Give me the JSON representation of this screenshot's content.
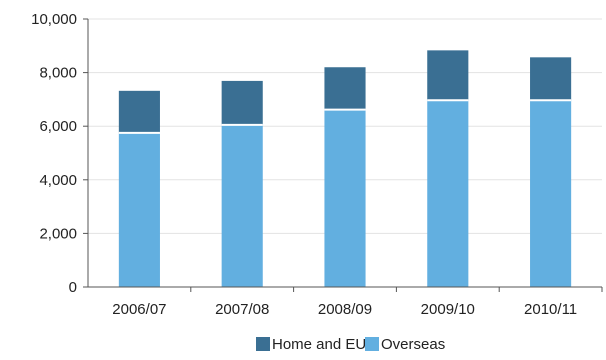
{
  "chart_data": {
    "type": "bar",
    "stacked": true,
    "categories": [
      "2006/07",
      "2007/08",
      "2008/09",
      "2009/10",
      "2010/11"
    ],
    "series": [
      {
        "name": "Overseas",
        "values": [
          5750,
          6050,
          6620,
          6970,
          6970
        ],
        "color": "#62AFE0"
      },
      {
        "name": "Home and EU",
        "values": [
          1570,
          1640,
          1580,
          1860,
          1600
        ],
        "color": "#3A6F93"
      }
    ],
    "y_ticks": [
      "0",
      "2,000",
      "4,000",
      "6,000",
      "8,000",
      "10,000"
    ],
    "ylim": [
      0,
      10000
    ],
    "grid": true,
    "legend_position": "bottom-center",
    "legend": [
      {
        "name": "Home and EU",
        "color": "#3A6F93"
      },
      {
        "name": "Overseas",
        "color": "#62AFE0"
      }
    ]
  }
}
